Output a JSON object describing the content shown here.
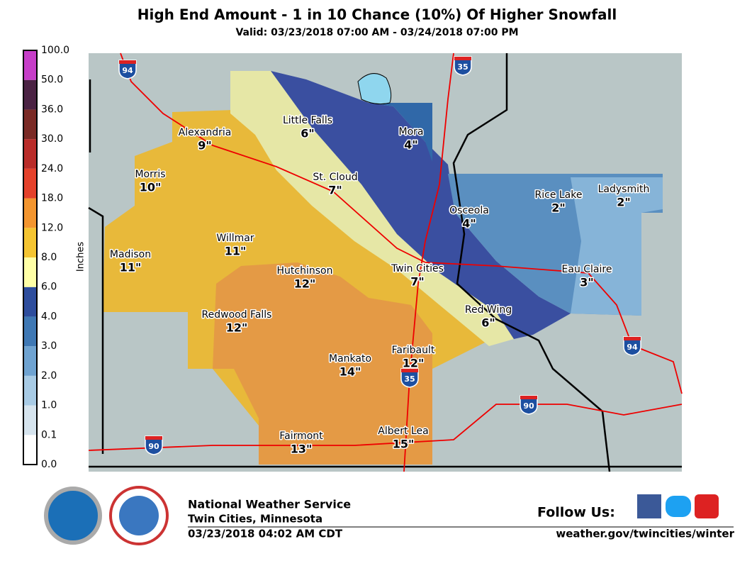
{
  "header": {
    "title": "High End Amount - 1 in 10 Chance (10%) Of Higher Snowfall",
    "subtitle": "Valid: 03/23/2018 07:00 AM - 03/24/2018 07:00 PM"
  },
  "legend": {
    "label": "Inches",
    "ticks": [
      "0.0",
      "0.1",
      "1.0",
      "2.0",
      "3.0",
      "4.0",
      "6.0",
      "8.0",
      "12.0",
      "18.0",
      "24.0",
      "30.0",
      "36.0",
      "50.0",
      "100.0"
    ]
  },
  "cities": [
    {
      "name": "Little Falls",
      "amount": "6\""
    },
    {
      "name": "Mora",
      "amount": "4\""
    },
    {
      "name": "Alexandria",
      "amount": "9\""
    },
    {
      "name": "St. Cloud",
      "amount": "7\""
    },
    {
      "name": "Morris",
      "amount": "10\""
    },
    {
      "name": "Rice Lake",
      "amount": "2\""
    },
    {
      "name": "Ladysmith",
      "amount": "2\""
    },
    {
      "name": "Osceola",
      "amount": "4\""
    },
    {
      "name": "Willmar",
      "amount": "11\""
    },
    {
      "name": "Madison",
      "amount": "11\""
    },
    {
      "name": "Twin Cities",
      "amount": "7\""
    },
    {
      "name": "Hutchinson",
      "amount": "12\""
    },
    {
      "name": "Eau Claire",
      "amount": "3\""
    },
    {
      "name": "Red Wing",
      "amount": "6\""
    },
    {
      "name": "Redwood Falls",
      "amount": "12\""
    },
    {
      "name": "Faribault",
      "amount": "12\""
    },
    {
      "name": "Mankato",
      "amount": "14\""
    },
    {
      "name": "Fairmont",
      "amount": "13\""
    },
    {
      "name": "Albert Lea",
      "amount": "15\""
    }
  ],
  "shields": [
    "94",
    "35",
    "94",
    "90",
    "35",
    "90"
  ],
  "footer": {
    "org": "National Weather Service",
    "office": "Twin Cities, Minnesota",
    "issued": "03/23/2018 04:02 AM CDT",
    "follow": "Follow Us:",
    "url": "weather.gov/twincities/winter"
  }
}
